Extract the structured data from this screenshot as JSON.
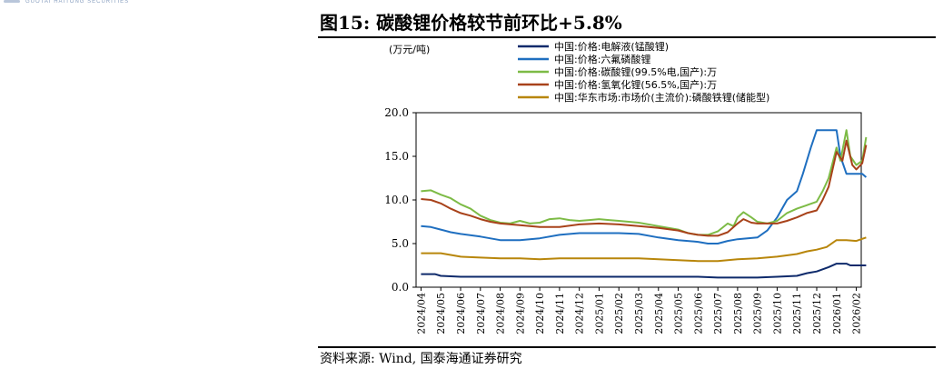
{
  "header": {
    "strip_text": "GUOTAI HAITONG SECURITIES"
  },
  "figure": {
    "title": "图15:  碳酸锂价格较节前环比+5.8%",
    "source": "资料来源:  Wind,  国泰海通证券研究"
  },
  "chart_data": {
    "type": "line",
    "unit_label": "(万元/吨)",
    "ylim": [
      0,
      20
    ],
    "yticks": [
      "0.0",
      "5.0",
      "10.0",
      "15.0",
      "20.0"
    ],
    "ytick_values": [
      0,
      5,
      10,
      15,
      20
    ],
    "x_ticks": [
      "2024/04",
      "2024/05",
      "2024/06",
      "2024/07",
      "2024/08",
      "2024/09",
      "2024/10",
      "2024/11",
      "2024/12",
      "2025/01",
      "2025/02",
      "2025/03",
      "2025/04",
      "2025/05",
      "2025/06",
      "2025/07",
      "2025/08",
      "2025/09",
      "2025/10",
      "2025/11",
      "2025/12",
      "2026/01",
      "2026/02"
    ],
    "grid": false,
    "legend_position": "top-left",
    "series": [
      {
        "name": "中国:价格:电解液(锰酸锂)",
        "color": "#0e2a6b",
        "points": [
          [
            0,
            1.5
          ],
          [
            0.7,
            1.5
          ],
          [
            1,
            1.3
          ],
          [
            2,
            1.2
          ],
          [
            4,
            1.2
          ],
          [
            6,
            1.2
          ],
          [
            8,
            1.2
          ],
          [
            10,
            1.2
          ],
          [
            12,
            1.2
          ],
          [
            14,
            1.2
          ],
          [
            15,
            1.1
          ],
          [
            17,
            1.1
          ],
          [
            18,
            1.2
          ],
          [
            19,
            1.3
          ],
          [
            19.5,
            1.6
          ],
          [
            20,
            1.8
          ],
          [
            20.6,
            2.3
          ],
          [
            21,
            2.7
          ],
          [
            21.5,
            2.7
          ],
          [
            21.7,
            2.5
          ],
          [
            22,
            2.5
          ],
          [
            22.5,
            2.5
          ]
        ]
      },
      {
        "name": "中国:价格:六氟磷酸锂",
        "color": "#1f6fc0",
        "points": [
          [
            0,
            7.0
          ],
          [
            0.5,
            6.9
          ],
          [
            1,
            6.6
          ],
          [
            1.5,
            6.3
          ],
          [
            2,
            6.1
          ],
          [
            3,
            5.8
          ],
          [
            4,
            5.4
          ],
          [
            5,
            5.4
          ],
          [
            6,
            5.6
          ],
          [
            7,
            6.0
          ],
          [
            8,
            6.2
          ],
          [
            10,
            6.2
          ],
          [
            11,
            6.1
          ],
          [
            12,
            5.7
          ],
          [
            13,
            5.4
          ],
          [
            14,
            5.2
          ],
          [
            14.5,
            5.0
          ],
          [
            15,
            5.0
          ],
          [
            15.5,
            5.3
          ],
          [
            16,
            5.5
          ],
          [
            17,
            5.7
          ],
          [
            17.5,
            6.5
          ],
          [
            18,
            8.0
          ],
          [
            18.5,
            10.0
          ],
          [
            19,
            11.0
          ],
          [
            19.3,
            13.0
          ],
          [
            19.7,
            16.0
          ],
          [
            20,
            18.0
          ],
          [
            20.3,
            18.0
          ],
          [
            21,
            18.0
          ],
          [
            21.2,
            15.0
          ],
          [
            21.5,
            13.0
          ],
          [
            22,
            13.0
          ],
          [
            22.3,
            13.0
          ],
          [
            22.5,
            12.6
          ]
        ]
      },
      {
        "name": "中国:价格:碳酸锂(99.5%电,国产):万",
        "color": "#7dbb46",
        "points": [
          [
            0,
            11.0
          ],
          [
            0.5,
            11.1
          ],
          [
            1,
            10.6
          ],
          [
            1.5,
            10.2
          ],
          [
            2,
            9.5
          ],
          [
            2.5,
            9.0
          ],
          [
            3,
            8.2
          ],
          [
            3.5,
            7.7
          ],
          [
            4,
            7.4
          ],
          [
            4.5,
            7.3
          ],
          [
            5,
            7.6
          ],
          [
            5.5,
            7.3
          ],
          [
            6,
            7.4
          ],
          [
            6.5,
            7.8
          ],
          [
            7,
            7.9
          ],
          [
            7.5,
            7.7
          ],
          [
            8,
            7.6
          ],
          [
            8.5,
            7.7
          ],
          [
            9,
            7.8
          ],
          [
            9.5,
            7.7
          ],
          [
            10,
            7.6
          ],
          [
            11,
            7.4
          ],
          [
            12,
            7.0
          ],
          [
            13,
            6.6
          ],
          [
            13.5,
            6.2
          ],
          [
            14,
            6.0
          ],
          [
            14.5,
            6.0
          ],
          [
            15,
            6.4
          ],
          [
            15.5,
            7.3
          ],
          [
            15.8,
            7.0
          ],
          [
            16,
            8.0
          ],
          [
            16.3,
            8.6
          ],
          [
            16.7,
            8.0
          ],
          [
            17,
            7.5
          ],
          [
            17.5,
            7.3
          ],
          [
            18,
            7.6
          ],
          [
            18.5,
            8.5
          ],
          [
            19,
            9.0
          ],
          [
            19.5,
            9.4
          ],
          [
            20,
            9.8
          ],
          [
            20.3,
            11.0
          ],
          [
            20.6,
            12.5
          ],
          [
            21,
            16.0
          ],
          [
            21.2,
            14.5
          ],
          [
            21.5,
            18.0
          ],
          [
            21.7,
            15.0
          ],
          [
            22,
            14.0
          ],
          [
            22.3,
            14.5
          ],
          [
            22.5,
            17.2
          ]
        ]
      },
      {
        "name": "中国:价格:氢氧化锂(56.5%,国产):万",
        "color": "#a8421a",
        "points": [
          [
            0,
            10.1
          ],
          [
            0.5,
            10.0
          ],
          [
            1,
            9.6
          ],
          [
            1.5,
            9.0
          ],
          [
            2,
            8.5
          ],
          [
            2.5,
            8.2
          ],
          [
            3,
            7.8
          ],
          [
            3.5,
            7.5
          ],
          [
            4,
            7.3
          ],
          [
            5,
            7.1
          ],
          [
            6,
            6.9
          ],
          [
            7,
            6.9
          ],
          [
            8,
            7.2
          ],
          [
            9,
            7.3
          ],
          [
            10,
            7.2
          ],
          [
            11,
            7.0
          ],
          [
            12,
            6.8
          ],
          [
            13,
            6.5
          ],
          [
            13.5,
            6.2
          ],
          [
            14,
            6.0
          ],
          [
            14.5,
            5.9
          ],
          [
            15,
            5.9
          ],
          [
            15.5,
            6.3
          ],
          [
            16,
            7.3
          ],
          [
            16.3,
            7.8
          ],
          [
            16.7,
            7.4
          ],
          [
            17,
            7.3
          ],
          [
            18,
            7.3
          ],
          [
            18.5,
            7.6
          ],
          [
            19,
            8.0
          ],
          [
            19.5,
            8.5
          ],
          [
            20,
            8.8
          ],
          [
            20.3,
            10.0
          ],
          [
            20.6,
            11.5
          ],
          [
            21,
            15.5
          ],
          [
            21.3,
            14.5
          ],
          [
            21.5,
            16.8
          ],
          [
            21.8,
            14.0
          ],
          [
            22,
            13.5
          ],
          [
            22.3,
            14.2
          ],
          [
            22.5,
            16.3
          ]
        ]
      },
      {
        "name": "中国:华东市场:市场价(主流价):磷酸铁锂(储能型)",
        "color": "#b8860b",
        "points": [
          [
            0,
            3.9
          ],
          [
            1,
            3.9
          ],
          [
            2,
            3.5
          ],
          [
            3,
            3.4
          ],
          [
            4,
            3.3
          ],
          [
            5,
            3.3
          ],
          [
            6,
            3.2
          ],
          [
            7,
            3.3
          ],
          [
            8,
            3.3
          ],
          [
            9,
            3.3
          ],
          [
            10,
            3.3
          ],
          [
            11,
            3.3
          ],
          [
            12,
            3.2
          ],
          [
            13,
            3.1
          ],
          [
            14,
            3.0
          ],
          [
            15,
            3.0
          ],
          [
            16,
            3.2
          ],
          [
            17,
            3.3
          ],
          [
            18,
            3.5
          ],
          [
            19,
            3.8
          ],
          [
            19.5,
            4.1
          ],
          [
            20,
            4.3
          ],
          [
            20.5,
            4.6
          ],
          [
            21,
            5.4
          ],
          [
            21.5,
            5.4
          ],
          [
            22,
            5.3
          ],
          [
            22.5,
            5.7
          ]
        ]
      }
    ]
  }
}
